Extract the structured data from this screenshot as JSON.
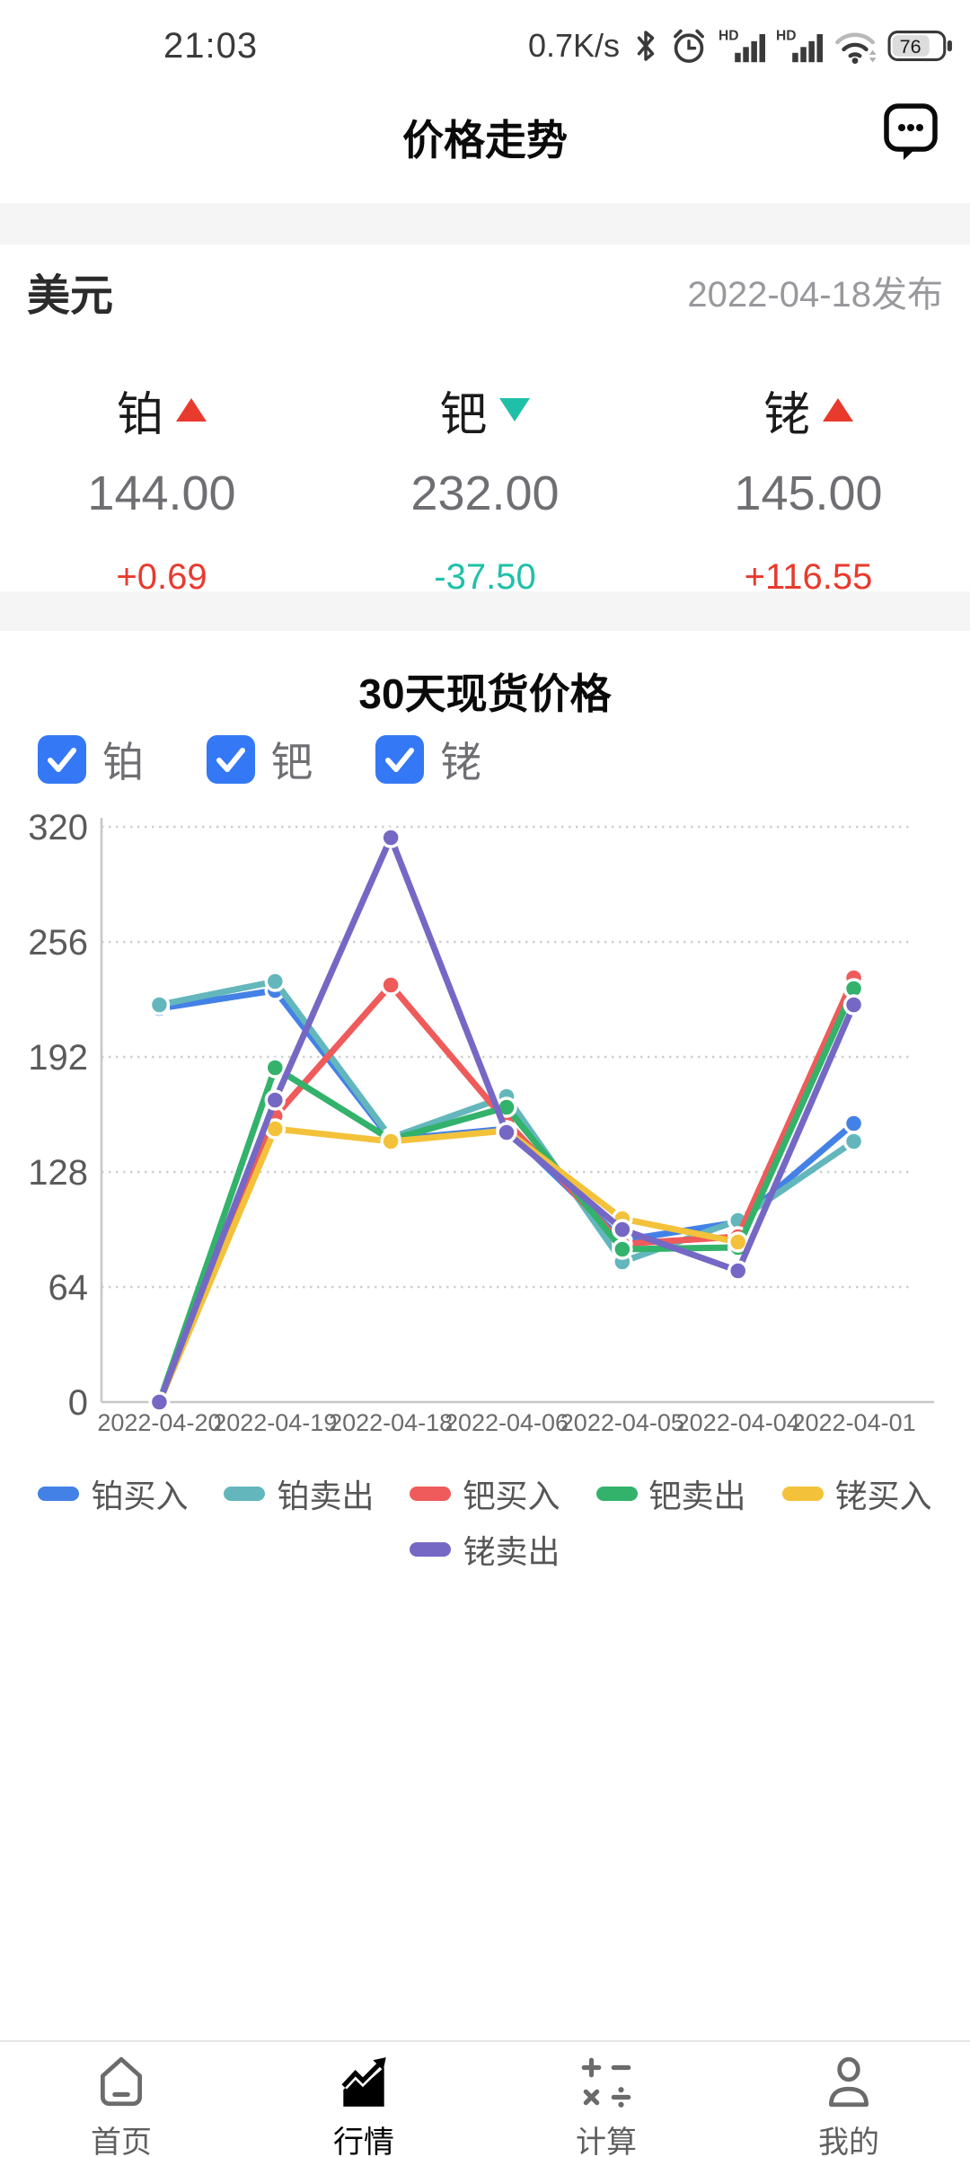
{
  "status_bar": {
    "time": "21:03",
    "net_speed": "0.7K/s",
    "hd": "HD",
    "battery": "76"
  },
  "header": {
    "title": "价格走势"
  },
  "quote": {
    "currency": "美元",
    "publish_date": "2022-04-18发布",
    "items": [
      {
        "name": "铂",
        "direction": "up",
        "price": "144.00",
        "change": "+0.69"
      },
      {
        "name": "钯",
        "direction": "down",
        "price": "232.00",
        "change": "-37.50"
      },
      {
        "name": "铑",
        "direction": "up",
        "price": "145.00",
        "change": "+116.55"
      }
    ]
  },
  "chart_section": {
    "title": "30天现货价格",
    "filters": [
      {
        "label": "铂",
        "checked": true
      },
      {
        "label": "钯",
        "checked": true
      },
      {
        "label": "铑",
        "checked": true
      }
    ]
  },
  "chart_data": {
    "type": "line",
    "title": "30天现货价格",
    "categories": [
      "2022-04-20",
      "2022-04-19",
      "2022-04-18",
      "2022-04-06",
      "2022-04-05",
      "2022-04-04",
      "2022-04-01"
    ],
    "series": [
      {
        "name": "铂买入",
        "color": "#4381e6",
        "values": [
          219,
          229,
          146,
          152,
          90,
          100,
          155
        ]
      },
      {
        "name": "铂卖出",
        "color": "#63b7bc",
        "values": [
          221,
          234,
          147,
          170,
          78,
          101,
          145
        ]
      },
      {
        "name": "钯买入",
        "color": "#ef5b5b",
        "values": [
          0,
          159,
          232,
          156,
          88,
          92,
          236
        ]
      },
      {
        "name": "钯卖出",
        "color": "#33b26b",
        "values": [
          0,
          186,
          146,
          164,
          85,
          86,
          230
        ]
      },
      {
        "name": "铑买入",
        "color": "#f3c23a",
        "values": [
          0,
          152,
          145,
          151,
          102,
          89,
          null
        ]
      },
      {
        "name": "铑卖出",
        "color": "#7568c5",
        "values": [
          0,
          168,
          314,
          150,
          96,
          73,
          221
        ]
      }
    ],
    "ylim": [
      0,
      320
    ],
    "yticks": [
      0,
      64,
      128,
      192,
      256,
      320
    ],
    "grid": "horizontal-dotted",
    "legend_position": "bottom"
  },
  "nav": {
    "items": [
      {
        "label": "首页",
        "active": false
      },
      {
        "label": "行情",
        "active": true
      },
      {
        "label": "计算",
        "active": false
      },
      {
        "label": "我的",
        "active": false
      }
    ]
  },
  "colors": {
    "up_red": "#e93a2e",
    "down_teal": "#1fc0a7",
    "checkbox_blue": "#3478f6",
    "axis_gray": "#c8c8c8",
    "grid_gray": "#cfcfcf",
    "tick_text": "#5a5a5a",
    "xlabel_text": "#6b6b6b"
  }
}
